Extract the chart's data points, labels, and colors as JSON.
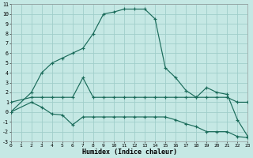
{
  "xlabel": "Humidex (Indice chaleur)",
  "bg_color": "#c5e8e4",
  "grid_color": "#a0ceca",
  "line_color": "#1a6b5a",
  "xlim": [
    0,
    23
  ],
  "ylim": [
    -3,
    11
  ],
  "xticks": [
    0,
    1,
    2,
    3,
    4,
    5,
    6,
    7,
    8,
    9,
    10,
    11,
    12,
    13,
    14,
    15,
    16,
    17,
    18,
    19,
    20,
    21,
    22,
    23
  ],
  "yticks": [
    -3,
    -2,
    -1,
    0,
    1,
    2,
    3,
    4,
    5,
    6,
    7,
    8,
    9,
    10,
    11
  ],
  "series": {
    "max": [
      [
        0,
        0
      ],
      [
        2,
        2
      ],
      [
        3,
        4
      ],
      [
        4,
        5
      ],
      [
        5,
        5.5
      ],
      [
        6,
        6
      ],
      [
        7,
        6.5
      ],
      [
        8,
        8
      ],
      [
        9,
        10
      ],
      [
        10,
        10.2
      ],
      [
        11,
        10.5
      ],
      [
        12,
        10.5
      ],
      [
        13,
        10.5
      ],
      [
        14,
        9.5
      ],
      [
        15,
        4.5
      ],
      [
        16,
        3.5
      ],
      [
        17,
        2.2
      ],
      [
        18,
        1.5
      ],
      [
        19,
        2.5
      ],
      [
        20,
        2.0
      ],
      [
        21,
        1.8
      ],
      [
        22,
        -0.8
      ],
      [
        23,
        -2.5
      ]
    ],
    "mean": [
      [
        0,
        1
      ],
      [
        2,
        1.5
      ],
      [
        3,
        1.5
      ],
      [
        4,
        1.5
      ],
      [
        5,
        1.5
      ],
      [
        6,
        1.5
      ],
      [
        7,
        3.5
      ],
      [
        8,
        1.5
      ],
      [
        9,
        1.5
      ],
      [
        10,
        1.5
      ],
      [
        11,
        1.5
      ],
      [
        12,
        1.5
      ],
      [
        13,
        1.5
      ],
      [
        14,
        1.5
      ],
      [
        15,
        1.5
      ],
      [
        16,
        1.5
      ],
      [
        17,
        1.5
      ],
      [
        18,
        1.5
      ],
      [
        19,
        1.5
      ],
      [
        20,
        1.5
      ],
      [
        21,
        1.5
      ],
      [
        22,
        1.0
      ],
      [
        23,
        1.0
      ]
    ],
    "min": [
      [
        0,
        0
      ],
      [
        2,
        1.0
      ],
      [
        3,
        0.5
      ],
      [
        4,
        -0.2
      ],
      [
        5,
        -0.3
      ],
      [
        6,
        -1.3
      ],
      [
        7,
        -0.5
      ],
      [
        8,
        -0.5
      ],
      [
        9,
        -0.5
      ],
      [
        10,
        -0.5
      ],
      [
        11,
        -0.5
      ],
      [
        12,
        -0.5
      ],
      [
        13,
        -0.5
      ],
      [
        14,
        -0.5
      ],
      [
        15,
        -0.5
      ],
      [
        16,
        -0.8
      ],
      [
        17,
        -1.2
      ],
      [
        18,
        -1.5
      ],
      [
        19,
        -2.0
      ],
      [
        20,
        -2.0
      ],
      [
        21,
        -2.0
      ],
      [
        22,
        -2.5
      ],
      [
        23,
        -2.6
      ]
    ]
  }
}
